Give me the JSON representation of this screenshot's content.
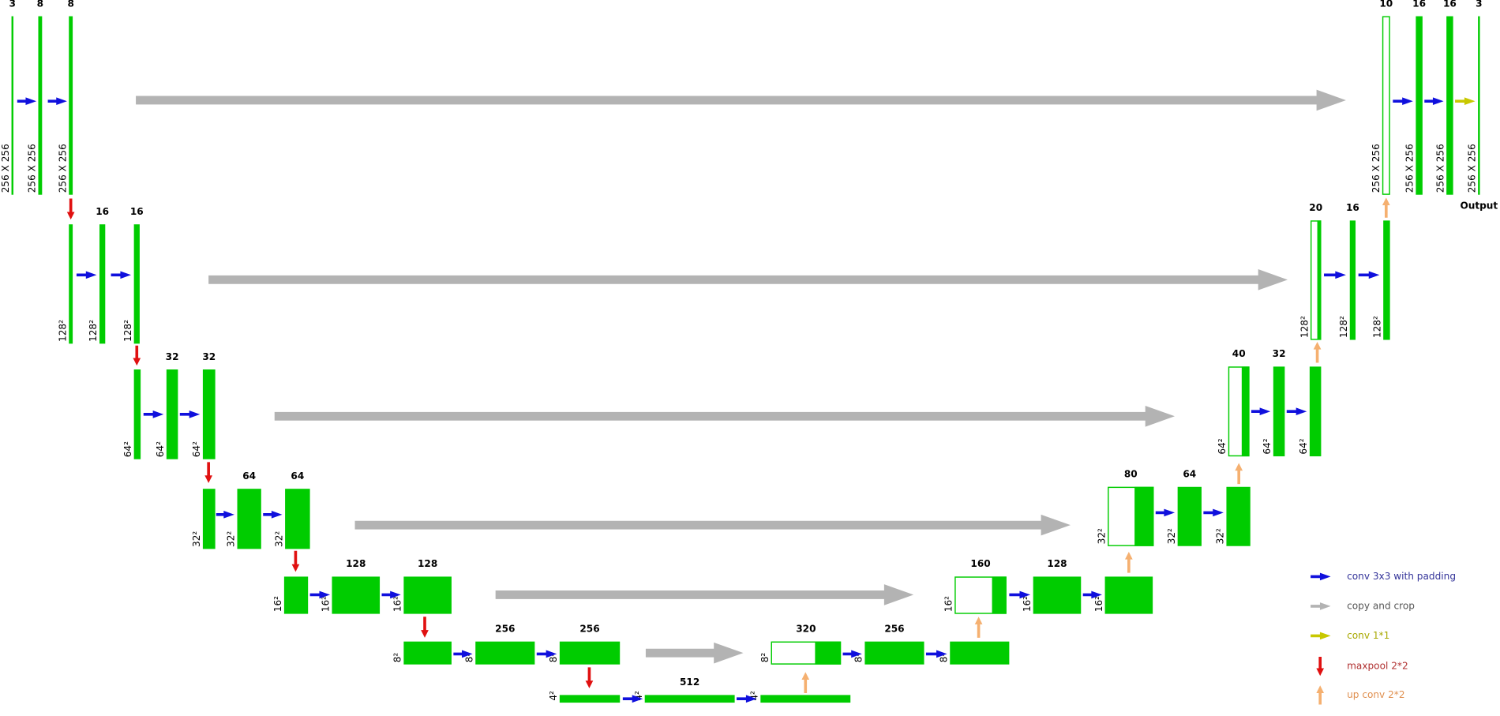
{
  "blocks": [
    {
      "channels": 3,
      "size": "256 X 256"
    },
    {
      "channels": 8,
      "size": "256 X 256"
    },
    {
      "channels": 8,
      "size": "256 X 256"
    },
    {
      "size": "128²"
    },
    {
      "channels": 16,
      "size": "128²"
    },
    {
      "channels": 16,
      "size": "128²"
    },
    {
      "size": "64²"
    },
    {
      "channels": 32,
      "size": "64²"
    },
    {
      "channels": 32,
      "size": "64²"
    },
    {
      "size": "32²"
    },
    {
      "channels": 64,
      "size": "32²"
    },
    {
      "channels": 64,
      "size": "32²"
    },
    {
      "size": "16²"
    },
    {
      "channels": 128,
      "size": "16²"
    },
    {
      "channels": 128,
      "size": "16²"
    },
    {
      "size": "8²"
    },
    {
      "channels": 256,
      "size": "8²"
    },
    {
      "channels": 256,
      "size": "8²"
    },
    {
      "size": "4²"
    },
    {
      "channels": 512,
      "size": "4²"
    },
    {
      "size": "4²"
    },
    {
      "channels": 320,
      "size": "8²"
    },
    {
      "channels": 256,
      "size": "8²"
    },
    {
      "size": "8²"
    },
    {
      "channels": 160,
      "size": "16²"
    },
    {
      "channels": 128,
      "size": "16²"
    },
    {
      "size": "16²"
    },
    {
      "channels": 80,
      "size": "32²"
    },
    {
      "channels": 64,
      "size": "32²"
    },
    {
      "size": "32²"
    },
    {
      "channels": 40,
      "size": "64²"
    },
    {
      "channels": 32,
      "size": "64²"
    },
    {
      "size": "64²"
    },
    {
      "channels": 20,
      "size": "128²"
    },
    {
      "channels": 16,
      "size": "128²"
    },
    {
      "size": "128²"
    },
    {
      "channels": 10,
      "size": "256 X 256"
    },
    {
      "channels": 16,
      "size": "256 X 256"
    },
    {
      "channels": 16,
      "size": "256 X 256"
    },
    {
      "channels": 3,
      "size": "256 X 256"
    }
  ],
  "output_label": "Output",
  "legend": [
    {
      "label": "conv 3x3 with padding"
    },
    {
      "label": "copy and crop"
    },
    {
      "label": "conv 1*1"
    },
    {
      "label": "maxpool 2*2"
    },
    {
      "label": "up conv 2*2"
    }
  ]
}
